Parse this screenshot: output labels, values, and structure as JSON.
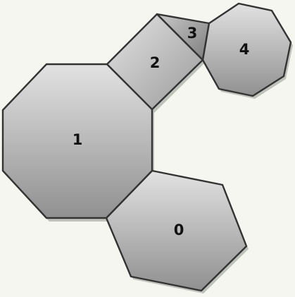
{
  "pieces": [
    {
      "id": "piece-0",
      "label": "0",
      "shape": "hexagon"
    },
    {
      "id": "piece-1",
      "label": "1",
      "shape": "octagon"
    },
    {
      "id": "piece-2",
      "label": "2",
      "shape": "square"
    },
    {
      "id": "piece-3",
      "label": "3",
      "shape": "triangle"
    },
    {
      "id": "piece-4",
      "label": "4",
      "shape": "nonagon"
    }
  ],
  "colors": {
    "background": "#f5f6f0",
    "stroke": "#333333",
    "fill_light": "#e2e2e2",
    "fill_dark": "#909090",
    "label": "#111111"
  }
}
